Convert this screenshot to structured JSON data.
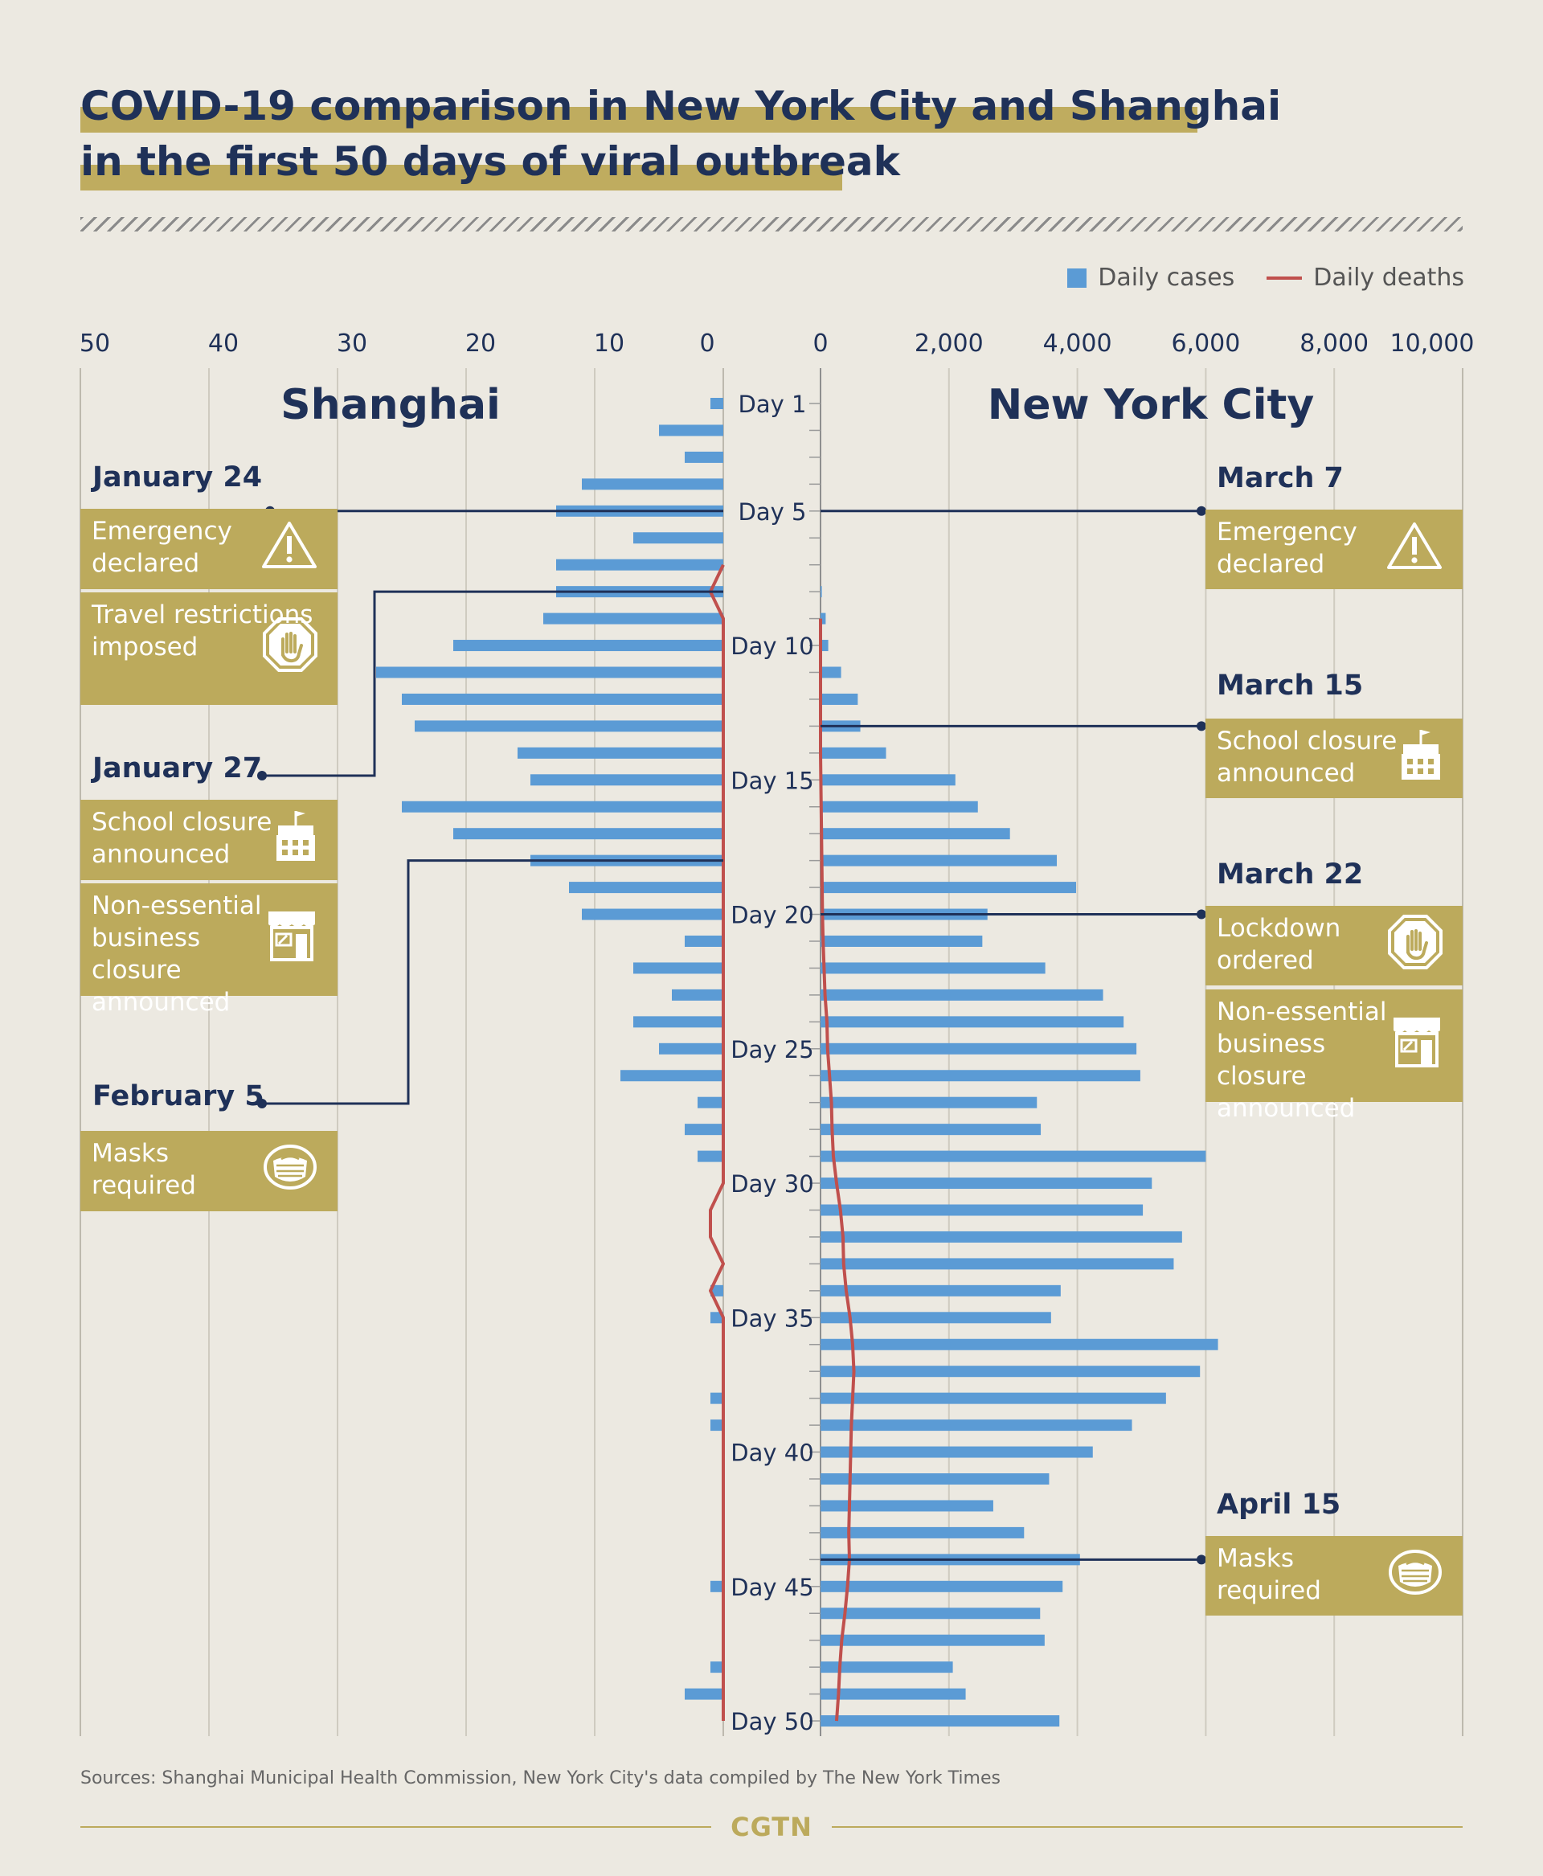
{
  "title": {
    "line1": "COVID-19 comparison in New York City and Shanghai",
    "line2": "in the first 50 days of viral outbreak"
  },
  "legend": {
    "cases": "Daily cases",
    "deaths": "Daily deaths"
  },
  "colors": {
    "cases": "#5b9bd5",
    "deaths": "#c0504d",
    "navy": "#1f3158",
    "gold": "#bcaa5c"
  },
  "source": "Sources: Shanghai Municipal Health Commission, New York City's data compiled by The New York Times",
  "brand": "CGTN",
  "events": {
    "shanghai": [
      {
        "date": "January 24",
        "day": 5,
        "cards": [
          {
            "text": "Emergency\ndeclared",
            "icon": "warning-icon"
          },
          {
            "text": "Travel restrictions\nimposed",
            "icon": "stop-hand-icon"
          }
        ]
      },
      {
        "date": "January 27",
        "day": 8,
        "cards": [
          {
            "text": "School closure\nannounced",
            "icon": "school-icon"
          },
          {
            "text": "Non-essential\nbusiness\nclosure announced",
            "icon": "shop-icon"
          }
        ]
      },
      {
        "date": "February 5",
        "day": 18,
        "cards": [
          {
            "text": "Masks\nrequired",
            "icon": "mask-icon"
          }
        ]
      }
    ],
    "nyc": [
      {
        "date": "March 7",
        "day": 5,
        "cards": [
          {
            "text": "Emergency\ndeclared",
            "icon": "warning-icon"
          }
        ]
      },
      {
        "date": "March  15",
        "day": 13,
        "cards": [
          {
            "text": "School closure\nannounced",
            "icon": "school-icon"
          }
        ]
      },
      {
        "date": "March 22",
        "day": 20,
        "cards": [
          {
            "text": "Lockdown\nordered",
            "icon": "stop-hand-icon"
          },
          {
            "text": "Non-essential\nbusiness\nclosure announced",
            "icon": "shop-icon"
          }
        ]
      },
      {
        "date": "April 15",
        "day": 44,
        "cards": [
          {
            "text": "Masks\nrequired",
            "icon": "mask-icon"
          }
        ]
      }
    ]
  },
  "chart_data": [
    {
      "type": "bar",
      "title": "Shanghai",
      "orientation": "horizontal-reversed",
      "x_ticks": [
        "50",
        "40",
        "30",
        "20",
        "10",
        "0"
      ],
      "xlim": [
        0,
        50
      ],
      "categories_day": [
        "Day 1",
        "Day 5",
        "Day 10",
        "Day 15",
        "Day 20",
        "Day 25",
        "Day 30",
        "Day 35",
        "Day 40",
        "Day 45",
        "Day 50"
      ],
      "series": [
        {
          "name": "Daily cases",
          "values": [
            1,
            5,
            3,
            11,
            13,
            7,
            13,
            13,
            14,
            21,
            27,
            25,
            24,
            16,
            15,
            25,
            21,
            15,
            12,
            11,
            3,
            7,
            4,
            7,
            5,
            8,
            2,
            3,
            2,
            0,
            0,
            0,
            0,
            1,
            1,
            0,
            0,
            1,
            1,
            0,
            0,
            0,
            0,
            0,
            1,
            0,
            0,
            1,
            3,
            0
          ]
        },
        {
          "name": "Daily deaths",
          "values": [
            0,
            0,
            0,
            0,
            0,
            0,
            0,
            1,
            0,
            0,
            0,
            0,
            0,
            0,
            0,
            0,
            0,
            0,
            0,
            0,
            0,
            0,
            0,
            0,
            0,
            0,
            0,
            0,
            0,
            0,
            1,
            1,
            0,
            1,
            0,
            0,
            0,
            0,
            0,
            0,
            0,
            0,
            0,
            0,
            0,
            0,
            0,
            0,
            0,
            0
          ]
        }
      ]
    },
    {
      "type": "bar",
      "title": "New York City",
      "x_ticks": [
        "0",
        "2,000",
        "4,000",
        "6,000",
        "8,000",
        "10,000"
      ],
      "xlim": [
        0,
        10000
      ],
      "categories_day": [
        "Day 1",
        "Day 5",
        "Day 10",
        "Day 15",
        "Day 20",
        "Day 25",
        "Day 30",
        "Day 35",
        "Day 40",
        "Day 45",
        "Day 50"
      ],
      "series": [
        {
          "name": "Daily cases",
          "values": [
            0,
            0,
            0,
            0,
            0,
            0,
            0,
            20,
            80,
            120,
            320,
            580,
            620,
            1020,
            2100,
            2450,
            2950,
            3680,
            3980,
            2600,
            2520,
            3500,
            4400,
            4720,
            4920,
            4980,
            3370,
            3430,
            6000,
            5160,
            5020,
            5630,
            5500,
            3740,
            3590,
            6190,
            5910,
            5380,
            4850,
            4240,
            3560,
            2690,
            3170,
            4040,
            3770,
            3420,
            3490,
            2060,
            2260,
            3720
          ]
        },
        {
          "name": "Daily deaths",
          "values": [
            0,
            0,
            0,
            0,
            0,
            0,
            0,
            0,
            0,
            0,
            0,
            0,
            0,
            0,
            5,
            10,
            15,
            20,
            25,
            30,
            40,
            55,
            70,
            100,
            110,
            140,
            170,
            180,
            200,
            250,
            310,
            350,
            360,
            400,
            460,
            500,
            520,
            500,
            480,
            470,
            460,
            450,
            440,
            450,
            420,
            380,
            330,
            300,
            280,
            250
          ]
        }
      ]
    }
  ]
}
